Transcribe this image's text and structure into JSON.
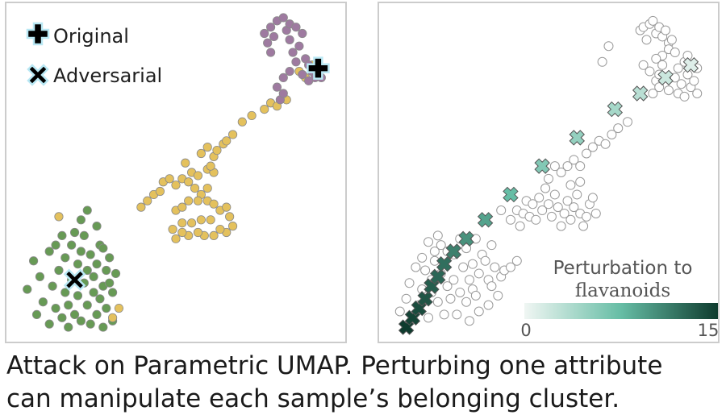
{
  "legend": {
    "original_label": "Original",
    "adversarial_label": "Adversarial"
  },
  "colorbar": {
    "title_line1": "Perturbation to",
    "title_line2": "flavanoids",
    "min_label": "0",
    "max_label": "15",
    "color_low": "#f0f6f3",
    "color_mid": "#66bda5",
    "color_high": "#0e3b2e"
  },
  "caption": {
    "line1": "Attack on Parametric UMAP.  Perturbing one attribute",
    "line2": "can manipulate each sample’s belonging cluster."
  },
  "colors": {
    "cluster_green": "#679a55",
    "cluster_yellow": "#e4c15d",
    "cluster_purple": "#9e7aa0",
    "point_edge": "#8a8a8a",
    "marker_halo": "#b9e8f4",
    "hollow_edge": "#9a9a9a"
  },
  "chart_data": [
    {
      "type": "scatter",
      "panel": "left",
      "xlim": [
        0,
        100
      ],
      "ylim": [
        0,
        100
      ],
      "series": [
        {
          "name": "",
          "color": "#679a55",
          "points": [
            [
              3,
              13
            ],
            [
              5,
              22
            ],
            [
              6,
              5
            ],
            [
              7,
              17
            ],
            [
              8,
              9
            ],
            [
              10,
              25
            ],
            [
              10,
              2
            ],
            [
              11,
              14
            ],
            [
              12,
              27
            ],
            [
              12,
              7
            ],
            [
              13,
              19
            ],
            [
              14,
              4
            ],
            [
              14,
              30
            ],
            [
              15,
              12
            ],
            [
              15,
              23
            ],
            [
              16,
              8
            ],
            [
              16,
              1
            ],
            [
              17,
              16
            ],
            [
              17,
              27
            ],
            [
              18,
              5
            ],
            [
              19,
              21
            ],
            [
              19,
              11
            ],
            [
              20,
              25
            ],
            [
              20,
              3
            ],
            [
              21,
              15
            ],
            [
              21,
              30
            ],
            [
              22,
              8
            ],
            [
              22,
              19
            ],
            [
              23,
              2
            ],
            [
              23,
              24
            ],
            [
              24,
              12
            ],
            [
              24,
              17
            ],
            [
              25,
              5
            ],
            [
              25,
              21
            ],
            [
              26,
              27
            ],
            [
              26,
              10
            ],
            [
              27,
              14
            ],
            [
              27,
              1
            ],
            [
              28,
              19
            ],
            [
              28,
              7
            ],
            [
              29,
              23
            ],
            [
              30,
              3
            ],
            [
              30,
              12
            ],
            [
              20,
              35
            ],
            [
              22,
              38
            ],
            [
              18,
              31
            ],
            [
              25,
              33
            ],
            [
              27,
              26
            ],
            [
              31,
              18
            ],
            [
              29,
              15
            ]
          ]
        },
        {
          "name": "",
          "color": "#e4c15d",
          "points": [
            [
              13,
              36
            ],
            [
              30,
              4
            ],
            [
              32,
              7
            ],
            [
              39,
              39
            ],
            [
              41,
              41
            ],
            [
              43,
              43
            ],
            [
              45,
              44
            ],
            [
              46,
              47
            ],
            [
              48,
              48
            ],
            [
              50,
              46
            ],
            [
              52,
              48
            ],
            [
              54,
              47
            ],
            [
              53,
              53
            ],
            [
              55,
              50
            ],
            [
              57,
              49
            ],
            [
              60,
              51
            ],
            [
              62,
              50
            ],
            [
              60,
              45
            ],
            [
              58,
              43
            ],
            [
              56,
              45
            ],
            [
              50,
              38
            ],
            [
              52,
              39
            ],
            [
              54,
              41
            ],
            [
              57,
              41
            ],
            [
              60,
              41
            ],
            [
              62,
              40
            ],
            [
              64,
              38
            ],
            [
              66,
              39
            ],
            [
              67,
              36
            ],
            [
              68,
              33
            ],
            [
              66,
              31
            ],
            [
              64,
              32
            ],
            [
              62,
              30
            ],
            [
              59,
              30
            ],
            [
              57,
              31
            ],
            [
              54,
              30
            ],
            [
              52,
              31
            ],
            [
              50,
              29
            ],
            [
              49,
              32
            ],
            [
              52,
              34
            ],
            [
              55,
              34
            ],
            [
              58,
              35
            ],
            [
              61,
              35
            ],
            [
              62,
              55
            ],
            [
              63,
              57
            ],
            [
              65,
              59
            ],
            [
              66,
              60
            ],
            [
              60,
              58
            ],
            [
              58,
              56
            ],
            [
              61,
              52
            ],
            [
              68,
              62
            ],
            [
              71,
              66
            ],
            [
              74,
              68
            ],
            [
              78,
              70
            ],
            [
              80,
              72
            ],
            [
              82,
              71
            ],
            [
              85,
              73
            ],
            [
              91,
              80
            ],
            [
              89,
              82
            ],
            [
              93,
              84
            ],
            [
              94,
              81
            ]
          ]
        },
        {
          "name": "",
          "color": "#9e7aa0",
          "points": [
            [
              80,
              96
            ],
            [
              82,
              98
            ],
            [
              84,
              99
            ],
            [
              85,
              95
            ],
            [
              86,
              92
            ],
            [
              87,
              88
            ],
            [
              88,
              85
            ],
            [
              86,
              82
            ],
            [
              84,
              80
            ],
            [
              82,
              77
            ],
            [
              83,
              73
            ],
            [
              84,
              75
            ],
            [
              80,
              88
            ],
            [
              79,
              91
            ],
            [
              81,
              93
            ],
            [
              78,
              94
            ],
            [
              86,
              97
            ],
            [
              88,
              96
            ],
            [
              90,
              94
            ],
            [
              89,
              90
            ],
            [
              91,
              86
            ],
            [
              92,
              84
            ],
            [
              93,
              82
            ],
            [
              94,
              80
            ],
            [
              95,
              82
            ],
            [
              96,
              80
            ],
            [
              97,
              83
            ],
            [
              92,
              79
            ],
            [
              90,
              81
            ]
          ]
        }
      ],
      "markers": {
        "original": [
          95,
          83
        ],
        "adversarial": [
          18,
          16
        ]
      }
    },
    {
      "type": "scatter",
      "panel": "right",
      "xlim": [
        0,
        100
      ],
      "ylim": [
        0,
        100
      ],
      "colorbar_range": [
        0,
        15
      ],
      "background_points": [
        [
          3,
          6
        ],
        [
          5,
          10
        ],
        [
          6,
          15
        ],
        [
          8,
          20
        ],
        [
          9,
          8
        ],
        [
          10,
          13
        ],
        [
          10,
          23
        ],
        [
          11,
          19
        ],
        [
          12,
          28
        ],
        [
          12,
          4
        ],
        [
          13,
          12
        ],
        [
          13,
          16
        ],
        [
          14,
          22
        ],
        [
          14,
          25
        ],
        [
          15,
          9
        ],
        [
          15,
          30
        ],
        [
          16,
          18
        ],
        [
          16,
          27
        ],
        [
          17,
          5
        ],
        [
          17,
          21
        ],
        [
          18,
          14
        ],
        [
          18,
          25
        ],
        [
          19,
          10
        ],
        [
          20,
          16
        ],
        [
          20,
          24
        ],
        [
          21,
          5
        ],
        [
          22,
          29
        ],
        [
          22,
          12
        ],
        [
          23,
          20
        ],
        [
          24,
          9
        ],
        [
          24,
          26
        ],
        [
          25,
          16
        ],
        [
          25,
          3
        ],
        [
          26,
          13
        ],
        [
          26,
          21
        ],
        [
          27,
          11
        ],
        [
          27,
          29
        ],
        [
          28,
          6
        ],
        [
          28,
          18
        ],
        [
          29,
          24
        ],
        [
          30,
          22
        ],
        [
          31,
          8
        ],
        [
          31,
          16
        ],
        [
          32,
          14
        ],
        [
          32,
          27
        ],
        [
          33,
          20
        ],
        [
          34,
          11
        ],
        [
          35,
          17
        ],
        [
          36,
          19
        ],
        [
          38,
          20
        ],
        [
          40,
          22
        ],
        [
          35,
          38
        ],
        [
          38,
          35
        ],
        [
          40,
          38
        ],
        [
          41,
          33
        ],
        [
          42,
          37
        ],
        [
          43,
          41
        ],
        [
          44,
          36
        ],
        [
          45,
          40
        ],
        [
          46,
          35
        ],
        [
          47,
          42
        ],
        [
          48,
          38
        ],
        [
          49,
          45
        ],
        [
          50,
          40
        ],
        [
          51,
          36
        ],
        [
          52,
          43
        ],
        [
          53,
          39
        ],
        [
          54,
          33
        ],
        [
          55,
          37
        ],
        [
          56,
          41
        ],
        [
          57,
          35
        ],
        [
          58,
          39
        ],
        [
          59,
          43
        ],
        [
          60,
          37
        ],
        [
          61,
          33
        ],
        [
          62,
          36
        ],
        [
          63,
          40
        ],
        [
          64,
          42
        ],
        [
          65,
          37
        ],
        [
          50,
          48
        ],
        [
          52,
          52
        ],
        [
          54,
          50
        ],
        [
          56,
          52
        ],
        [
          58,
          54
        ],
        [
          60,
          52
        ],
        [
          62,
          56
        ],
        [
          64,
          58
        ],
        [
          66,
          60
        ],
        [
          68,
          59
        ],
        [
          70,
          62
        ],
        [
          72,
          64
        ],
        [
          75,
          66
        ],
        [
          60,
          47
        ],
        [
          57,
          46
        ],
        [
          79,
          95
        ],
        [
          80,
          96
        ],
        [
          81,
          92
        ],
        [
          82,
          97
        ],
        [
          83,
          98
        ],
        [
          84,
          94
        ],
        [
          85,
          96
        ],
        [
          86,
          93
        ],
        [
          87,
          95
        ],
        [
          88,
          91
        ],
        [
          88,
          89
        ],
        [
          89,
          92
        ],
        [
          90,
          88
        ],
        [
          86,
          87
        ],
        [
          84,
          86
        ],
        [
          82,
          82
        ],
        [
          84,
          79
        ],
        [
          85,
          81
        ],
        [
          86,
          84
        ],
        [
          88,
          76
        ],
        [
          90,
          80
        ],
        [
          91,
          75
        ],
        [
          92,
          78
        ],
        [
          93,
          74
        ],
        [
          94,
          81
        ],
        [
          95,
          77
        ],
        [
          96,
          79
        ],
        [
          97,
          83
        ],
        [
          97,
          75
        ],
        [
          91,
          83
        ],
        [
          93,
          85
        ],
        [
          94,
          87
        ],
        [
          85,
          77
        ],
        [
          83,
          75
        ],
        [
          80,
          84
        ],
        [
          69,
          90
        ],
        [
          67,
          85
        ]
      ],
      "adversarial_points": [
        {
          "x": 5,
          "y": 1,
          "perturbation": 15
        },
        {
          "x": 7,
          "y": 4,
          "perturbation": 14.5
        },
        {
          "x": 9,
          "y": 7,
          "perturbation": 14
        },
        {
          "x": 11,
          "y": 10,
          "perturbation": 13.5
        },
        {
          "x": 13,
          "y": 14,
          "perturbation": 13
        },
        {
          "x": 15,
          "y": 17,
          "perturbation": 12.5
        },
        {
          "x": 17,
          "y": 21,
          "perturbation": 12
        },
        {
          "x": 20,
          "y": 25,
          "perturbation": 11
        },
        {
          "x": 24,
          "y": 29,
          "perturbation": 10
        },
        {
          "x": 30,
          "y": 35,
          "perturbation": 9
        },
        {
          "x": 38,
          "y": 43,
          "perturbation": 7.5
        },
        {
          "x": 48,
          "y": 52,
          "perturbation": 6
        },
        {
          "x": 59,
          "y": 61,
          "perturbation": 5
        },
        {
          "x": 71,
          "y": 70,
          "perturbation": 4
        },
        {
          "x": 79,
          "y": 75,
          "perturbation": 3
        },
        {
          "x": 87,
          "y": 80,
          "perturbation": 2
        },
        {
          "x": 95,
          "y": 84,
          "perturbation": 1
        }
      ]
    }
  ]
}
